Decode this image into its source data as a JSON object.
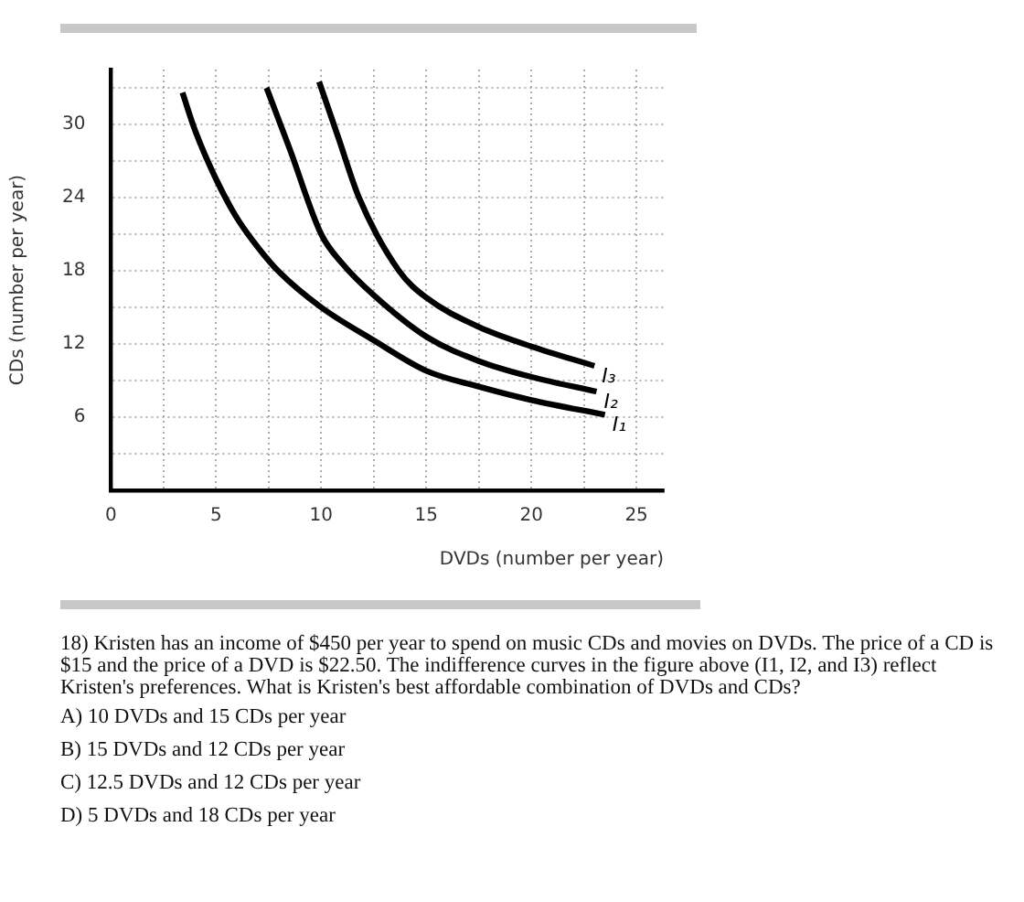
{
  "chart_data": {
    "type": "line",
    "xlabel": "DVDs (number per year)",
    "ylabel": "CDs (number per year)",
    "xlim": [
      0,
      26.3
    ],
    "ylim": [
      0,
      34.5
    ],
    "xticks": [
      0,
      {
        "value": 2.5,
        "label": null
      },
      5,
      {
        "value": 7.5,
        "label": null
      },
      10,
      {
        "value": 12.5,
        "label": null
      },
      15,
      {
        "value": 17.5,
        "label": null
      },
      20,
      {
        "value": 22.5,
        "label": null
      },
      25
    ],
    "yticks": [
      {
        "value": 3,
        "label": null
      },
      6,
      {
        "value": 9,
        "label": null
      },
      12,
      {
        "value": 15,
        "label": null
      },
      18,
      {
        "value": 21,
        "label": null
      },
      24,
      {
        "value": 27,
        "label": null
      },
      30,
      {
        "value": 33,
        "label": null
      }
    ],
    "grid": true,
    "legend": false,
    "marker": "none",
    "line_style": "solid",
    "series": [
      {
        "name": "I₁",
        "color": "#000000",
        "x": [
          3.4,
          4,
          5,
          6,
          7,
          8,
          10,
          12.5,
          15,
          17.5,
          20,
          23.5
        ],
        "values": [
          32.6,
          29.5,
          25.5,
          22.3,
          19.9,
          17.9,
          15,
          12.3,
          9.8,
          8.5,
          7.4,
          6.2
        ]
      },
      {
        "name": "I₂",
        "color": "#000000",
        "x": [
          7.4,
          8.5,
          10,
          11,
          12.5,
          15,
          17.5,
          20,
          23.1
        ],
        "values": [
          33,
          28,
          21,
          18.6,
          16,
          12.6,
          10.6,
          9.3,
          8.1
        ]
      },
      {
        "name": "I₃",
        "color": "#000000",
        "x": [
          9.9,
          10.8,
          11.8,
          13.7,
          15,
          17.5,
          20,
          23
        ],
        "values": [
          33.5,
          29,
          24,
          18,
          15.8,
          13.4,
          11.8,
          10.2
        ]
      }
    ],
    "annotations": [
      "18) Kristen has an income of $450 per year to spend on music CDs and movies on DVDs. The price of a CD is $15 and the price of a DVD is $22.50. The indifference curves in the figure above (I1, I2, and I3) reflect Kristen's preferences. What is Kristen's best affordable combination of DVDs and CDs?",
      "A) 10 DVDs and 15 CDs per year",
      "B) 15 DVDs and 12 CDs per year",
      "C) 12.5 DVDs and 12 CDs per year",
      "D) 5 DVDs and 18 CDs per year"
    ]
  }
}
